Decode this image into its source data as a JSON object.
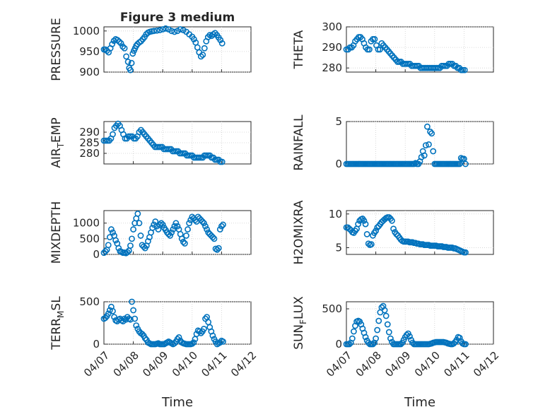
{
  "figure": {
    "title": "Figure 3 medium",
    "xlabel": "Time",
    "x_tick_labels": [
      "04/07",
      "04/08",
      "04/09",
      "04/10",
      "04/11",
      "04/12"
    ],
    "marker_color": "#0072bd"
  },
  "chart_data": [
    {
      "type": "scatter",
      "ylabel": "PRESSURE",
      "ylim": [
        900,
        1010
      ],
      "yticks": [
        900,
        950,
        1000
      ],
      "xlim": [
        0,
        5
      ],
      "grid": true,
      "x": [
        0.0,
        0.05,
        0.1,
        0.16,
        0.22,
        0.28,
        0.34,
        0.4,
        0.46,
        0.52,
        0.58,
        0.64,
        0.7,
        0.76,
        0.82,
        0.86,
        0.9,
        0.94,
        0.98,
        1.02,
        1.06,
        1.1,
        1.14,
        1.2,
        1.26,
        1.32,
        1.38,
        1.44,
        1.5,
        1.56,
        1.62,
        1.7,
        1.8,
        1.9,
        2.0,
        2.1,
        2.2,
        2.3,
        2.4,
        2.5,
        2.6,
        2.7,
        2.8,
        2.9,
        3.0,
        3.06,
        3.12,
        3.18,
        3.24,
        3.3,
        3.36,
        3.42,
        3.48,
        3.54,
        3.6,
        3.66,
        3.72,
        3.78,
        3.84,
        3.9,
        3.96,
        4.02
      ],
      "y": [
        955,
        955,
        952,
        948,
        958,
        968,
        976,
        980,
        978,
        974,
        970,
        962,
        958,
        938,
        925,
        910,
        905,
        922,
        945,
        952,
        958,
        964,
        968,
        972,
        975,
        980,
        985,
        992,
        996,
        998,
        999,
        1000,
        1001,
        1002,
        1004,
        1006,
        1004,
        1000,
        998,
        1000,
        1004,
        1002,
        998,
        992,
        986,
        980,
        972,
        960,
        948,
        938,
        942,
        958,
        975,
        985,
        990,
        988,
        992,
        995,
        990,
        984,
        978,
        970
      ]
    },
    {
      "type": "scatter",
      "ylabel": "THETA",
      "ylim": [
        278,
        300
      ],
      "yticks": [
        280,
        290,
        300
      ],
      "xlim": [
        0,
        5
      ],
      "grid": true,
      "x": [
        0.0,
        0.06,
        0.12,
        0.18,
        0.24,
        0.3,
        0.36,
        0.42,
        0.48,
        0.54,
        0.6,
        0.66,
        0.72,
        0.78,
        0.84,
        0.9,
        0.96,
        1.02,
        1.08,
        1.14,
        1.2,
        1.26,
        1.32,
        1.38,
        1.44,
        1.5,
        1.56,
        1.62,
        1.68,
        1.74,
        1.8,
        1.86,
        1.92,
        1.98,
        2.04,
        2.1,
        2.16,
        2.22,
        2.28,
        2.34,
        2.4,
        2.46,
        2.52,
        2.58,
        2.64,
        2.7,
        2.76,
        2.82,
        2.88,
        2.94,
        3.0,
        3.06,
        3.12,
        3.18,
        3.24,
        3.3,
        3.36,
        3.42,
        3.48,
        3.54,
        3.6,
        3.66,
        3.72,
        3.78,
        3.84,
        3.9,
        3.96,
        4.02
      ],
      "y": [
        289,
        289,
        290,
        290,
        291,
        293,
        294,
        295,
        295,
        294,
        292,
        290,
        289,
        289,
        293,
        294,
        294,
        291,
        289,
        289,
        292,
        291,
        290,
        289,
        288,
        287,
        286,
        285,
        284,
        283,
        283,
        283,
        282,
        282,
        282,
        282,
        282,
        281,
        281,
        281,
        281,
        281,
        280,
        280,
        280,
        280,
        280,
        280,
        280,
        280,
        280,
        280,
        280,
        280,
        281,
        281,
        281,
        281,
        282,
        282,
        282,
        281,
        281,
        280,
        280,
        279,
        279,
        279
      ]
    },
    {
      "type": "scatter",
      "ylabel": "AIR_TEMP",
      "ylim": [
        275,
        295
      ],
      "yticks": [
        280,
        285,
        290
      ],
      "xlim": [
        0,
        5
      ],
      "grid": true,
      "x": [
        0.0,
        0.06,
        0.12,
        0.18,
        0.24,
        0.3,
        0.36,
        0.42,
        0.48,
        0.54,
        0.6,
        0.66,
        0.72,
        0.78,
        0.84,
        0.9,
        0.96,
        1.02,
        1.08,
        1.14,
        1.2,
        1.26,
        1.32,
        1.38,
        1.44,
        1.5,
        1.56,
        1.62,
        1.68,
        1.74,
        1.8,
        1.86,
        1.92,
        1.98,
        2.04,
        2.1,
        2.16,
        2.22,
        2.28,
        2.34,
        2.4,
        2.46,
        2.52,
        2.58,
        2.64,
        2.7,
        2.76,
        2.82,
        2.88,
        2.94,
        3.0,
        3.06,
        3.12,
        3.18,
        3.24,
        3.3,
        3.36,
        3.42,
        3.48,
        3.54,
        3.6,
        3.66,
        3.72,
        3.78,
        3.84,
        3.9,
        3.96,
        4.02
      ],
      "y": [
        286,
        286,
        286,
        286,
        287,
        289,
        292,
        293,
        294,
        293,
        291,
        289,
        287,
        287,
        288,
        288,
        288,
        287,
        287,
        288,
        290,
        291,
        290,
        289,
        288,
        287,
        286,
        285,
        284,
        283,
        283,
        283,
        283,
        283,
        282,
        282,
        282,
        282,
        282,
        281,
        281,
        281,
        281,
        280,
        280,
        280,
        280,
        279,
        279,
        279,
        279,
        278,
        278,
        278,
        278,
        278,
        278,
        279,
        279,
        279,
        279,
        278,
        278,
        277,
        277,
        277,
        276,
        276
      ]
    },
    {
      "type": "scatter",
      "ylabel": "RAINFALL",
      "ylim": [
        0,
        5
      ],
      "yticks": [
        0,
        5
      ],
      "xlim": [
        0,
        5
      ],
      "grid": true,
      "x": [
        0.0,
        0.05,
        0.1,
        0.15,
        0.2,
        0.25,
        0.3,
        0.35,
        0.4,
        0.45,
        0.5,
        0.55,
        0.6,
        0.65,
        0.7,
        0.75,
        0.8,
        0.85,
        0.9,
        0.95,
        1.0,
        1.05,
        1.1,
        1.15,
        1.2,
        1.25,
        1.3,
        1.35,
        1.4,
        1.45,
        1.5,
        1.55,
        1.6,
        1.65,
        1.7,
        1.75,
        1.8,
        1.85,
        1.9,
        1.95,
        2.0,
        2.05,
        2.1,
        2.15,
        2.2,
        2.25,
        2.3,
        2.35,
        2.4,
        2.45,
        2.5,
        2.55,
        2.6,
        2.65,
        2.7,
        2.75,
        2.8,
        2.85,
        2.9,
        2.95,
        3.0,
        3.05,
        3.1,
        3.15,
        3.2,
        3.25,
        3.3,
        3.35,
        3.4,
        3.45,
        3.5,
        3.55,
        3.6,
        3.65,
        3.7,
        3.75,
        3.8,
        3.85,
        3.9,
        3.95,
        4.0,
        4.05
      ],
      "y": [
        0,
        0,
        0,
        0,
        0,
        0,
        0,
        0,
        0,
        0,
        0,
        0,
        0,
        0,
        0,
        0,
        0,
        0,
        0,
        0,
        0,
        0,
        0,
        0,
        0,
        0,
        0,
        0,
        0,
        0,
        0,
        0,
        0,
        0,
        0,
        0,
        0,
        0,
        0,
        0,
        0,
        0,
        0,
        0,
        0,
        0,
        0,
        0.1,
        0,
        0,
        0.3,
        0.8,
        1.5,
        1.0,
        2.2,
        4.4,
        2.3,
        3.8,
        3.6,
        1.5,
        0,
        0,
        0,
        0,
        0,
        0,
        0,
        0,
        0,
        0,
        0,
        0,
        0,
        0,
        0,
        0,
        0,
        0,
        0.7,
        0.6,
        0.6,
        0
      ]
    },
    {
      "type": "scatter",
      "ylabel": "MIXDEPTH",
      "ylim": [
        0,
        1400
      ],
      "yticks": [
        0,
        500,
        1000
      ],
      "xlim": [
        0,
        5
      ],
      "grid": true,
      "x": [
        0.0,
        0.05,
        0.1,
        0.15,
        0.2,
        0.25,
        0.3,
        0.35,
        0.4,
        0.45,
        0.5,
        0.55,
        0.6,
        0.65,
        0.7,
        0.75,
        0.8,
        0.85,
        0.9,
        0.95,
        1.0,
        1.05,
        1.1,
        1.15,
        1.2,
        1.25,
        1.3,
        1.35,
        1.4,
        1.45,
        1.5,
        1.55,
        1.6,
        1.65,
        1.7,
        1.75,
        1.8,
        1.85,
        1.9,
        1.95,
        2.0,
        2.05,
        2.1,
        2.15,
        2.2,
        2.25,
        2.3,
        2.35,
        2.4,
        2.45,
        2.5,
        2.55,
        2.6,
        2.65,
        2.7,
        2.75,
        2.8,
        2.85,
        2.9,
        2.95,
        3.0,
        3.05,
        3.1,
        3.15,
        3.2,
        3.25,
        3.3,
        3.35,
        3.4,
        3.45,
        3.5,
        3.55,
        3.6,
        3.65,
        3.7,
        3.75,
        3.8,
        3.85,
        3.9,
        3.95,
        4.0,
        4.05
      ],
      "y": [
        50,
        100,
        150,
        300,
        550,
        800,
        700,
        600,
        450,
        350,
        200,
        100,
        80,
        50,
        60,
        40,
        70,
        120,
        280,
        500,
        800,
        1000,
        1150,
        1300,
        1000,
        600,
        300,
        250,
        200,
        280,
        420,
        550,
        700,
        850,
        950,
        1050,
        900,
        800,
        950,
        1000,
        950,
        850,
        780,
        700,
        650,
        600,
        700,
        800,
        900,
        1000,
        900,
        800,
        650,
        500,
        400,
        350,
        600,
        800,
        1000,
        1100,
        1200,
        1150,
        1100,
        1050,
        1200,
        1150,
        1100,
        1050,
        1000,
        900,
        800,
        700,
        650,
        600,
        550,
        500,
        180,
        150,
        200,
        800,
        900,
        950
      ]
    },
    {
      "type": "scatter",
      "ylabel": "H2OMIXRA",
      "ylim": [
        4,
        10.5
      ],
      "yticks": [
        5,
        10
      ],
      "xlim": [
        0,
        5
      ],
      "grid": true,
      "x": [
        0.0,
        0.05,
        0.1,
        0.15,
        0.2,
        0.25,
        0.3,
        0.35,
        0.4,
        0.45,
        0.5,
        0.55,
        0.6,
        0.65,
        0.7,
        0.75,
        0.8,
        0.85,
        0.9,
        0.95,
        1.0,
        1.05,
        1.1,
        1.15,
        1.2,
        1.25,
        1.3,
        1.35,
        1.4,
        1.45,
        1.5,
        1.55,
        1.6,
        1.65,
        1.7,
        1.75,
        1.8,
        1.85,
        1.9,
        1.95,
        2.0,
        2.05,
        2.1,
        2.15,
        2.2,
        2.25,
        2.3,
        2.35,
        2.4,
        2.45,
        2.5,
        2.55,
        2.6,
        2.65,
        2.7,
        2.75,
        2.8,
        2.85,
        2.9,
        2.95,
        3.0,
        3.05,
        3.1,
        3.15,
        3.2,
        3.25,
        3.3,
        3.35,
        3.4,
        3.45,
        3.5,
        3.55,
        3.6,
        3.65,
        3.7,
        3.75,
        3.8,
        3.85,
        3.9,
        3.95,
        4.0,
        4.05
      ],
      "y": [
        8.0,
        8.0,
        7.8,
        7.6,
        7.3,
        7.2,
        7.5,
        7.8,
        8.5,
        9.0,
        9.2,
        9.3,
        9.0,
        8.5,
        7.0,
        5.6,
        5.4,
        5.5,
        6.8,
        7.2,
        7.5,
        8.0,
        8.2,
        8.5,
        8.8,
        9.0,
        9.2,
        9.4,
        9.5,
        9.5,
        9.3,
        9.0,
        7.8,
        7.3,
        7.0,
        6.8,
        6.5,
        6.2,
        6.0,
        5.9,
        5.9,
        5.9,
        5.9,
        5.8,
        5.8,
        5.8,
        5.7,
        5.7,
        5.6,
        5.6,
        5.5,
        5.5,
        5.5,
        5.4,
        5.4,
        5.4,
        5.4,
        5.3,
        5.3,
        5.3,
        5.3,
        5.3,
        5.2,
        5.2,
        5.2,
        5.2,
        5.1,
        5.1,
        5.1,
        5.0,
        5.0,
        5.0,
        5.0,
        4.9,
        4.9,
        4.8,
        4.7,
        4.6,
        4.5,
        4.4,
        4.3,
        4.3
      ]
    },
    {
      "type": "scatter",
      "ylabel": "TERR_MSL",
      "ylim": [
        0,
        500
      ],
      "yticks": [
        0,
        500
      ],
      "xlim": [
        0,
        5
      ],
      "grid": true,
      "x": [
        0.0,
        0.05,
        0.1,
        0.15,
        0.2,
        0.25,
        0.3,
        0.35,
        0.4,
        0.45,
        0.5,
        0.55,
        0.6,
        0.65,
        0.7,
        0.75,
        0.8,
        0.85,
        0.9,
        0.95,
        1.0,
        1.05,
        1.1,
        1.15,
        1.2,
        1.25,
        1.3,
        1.35,
        1.4,
        1.45,
        1.5,
        1.55,
        1.6,
        1.65,
        1.7,
        1.75,
        1.8,
        1.85,
        1.9,
        1.95,
        2.0,
        2.05,
        2.1,
        2.15,
        2.2,
        2.25,
        2.3,
        2.35,
        2.4,
        2.45,
        2.5,
        2.55,
        2.6,
        2.65,
        2.7,
        2.75,
        2.8,
        2.85,
        2.9,
        2.95,
        3.0,
        3.05,
        3.1,
        3.15,
        3.2,
        3.25,
        3.3,
        3.35,
        3.4,
        3.45,
        3.5,
        3.55,
        3.6,
        3.65,
        3.7,
        3.75,
        3.8,
        3.85,
        3.9,
        3.95,
        4.0,
        4.05
      ],
      "y": [
        300,
        310,
        330,
        360,
        400,
        440,
        390,
        320,
        280,
        270,
        290,
        300,
        280,
        270,
        300,
        290,
        320,
        300,
        290,
        500,
        400,
        300,
        220,
        180,
        150,
        130,
        120,
        100,
        70,
        50,
        20,
        10,
        0,
        0,
        0,
        0,
        5,
        10,
        0,
        0,
        0,
        0,
        10,
        20,
        30,
        20,
        10,
        0,
        10,
        30,
        60,
        80,
        40,
        20,
        10,
        5,
        0,
        0,
        0,
        0,
        5,
        20,
        60,
        120,
        160,
        150,
        130,
        150,
        180,
        300,
        320,
        260,
        200,
        150,
        100,
        60,
        30,
        0,
        10,
        20,
        40,
        30
      ]
    },
    {
      "type": "scatter",
      "ylabel": "SUN_FLUX",
      "ylim": [
        0,
        600
      ],
      "yticks": [
        0,
        500
      ],
      "xlim": [
        0,
        5
      ],
      "grid": true,
      "x": [
        0.0,
        0.05,
        0.1,
        0.15,
        0.2,
        0.25,
        0.3,
        0.35,
        0.4,
        0.45,
        0.5,
        0.55,
        0.6,
        0.65,
        0.7,
        0.75,
        0.8,
        0.85,
        0.9,
        0.95,
        1.0,
        1.05,
        1.1,
        1.15,
        1.2,
        1.25,
        1.3,
        1.35,
        1.4,
        1.45,
        1.5,
        1.55,
        1.6,
        1.65,
        1.7,
        1.75,
        1.8,
        1.85,
        1.9,
        1.95,
        2.0,
        2.05,
        2.1,
        2.15,
        2.2,
        2.25,
        2.3,
        2.35,
        2.4,
        2.45,
        2.5,
        2.55,
        2.6,
        2.65,
        2.7,
        2.75,
        2.8,
        2.85,
        2.9,
        2.95,
        3.0,
        3.05,
        3.1,
        3.15,
        3.2,
        3.25,
        3.3,
        3.35,
        3.4,
        3.45,
        3.5,
        3.55,
        3.6,
        3.65,
        3.7,
        3.75,
        3.8,
        3.85,
        3.9,
        3.95,
        4.0,
        4.05
      ],
      "y": [
        0,
        0,
        0,
        20,
        80,
        180,
        260,
        320,
        330,
        320,
        280,
        220,
        160,
        100,
        50,
        20,
        0,
        0,
        0,
        20,
        80,
        200,
        330,
        450,
        520,
        540,
        480,
        400,
        280,
        170,
        80,
        30,
        0,
        0,
        0,
        0,
        0,
        0,
        20,
        60,
        100,
        130,
        150,
        110,
        60,
        20,
        0,
        0,
        0,
        0,
        0,
        0,
        0,
        0,
        0,
        0,
        0,
        5,
        10,
        20,
        25,
        30,
        30,
        30,
        30,
        30,
        30,
        25,
        20,
        10,
        5,
        0,
        0,
        10,
        30,
        60,
        100,
        90,
        40,
        10,
        0,
        0
      ]
    }
  ]
}
